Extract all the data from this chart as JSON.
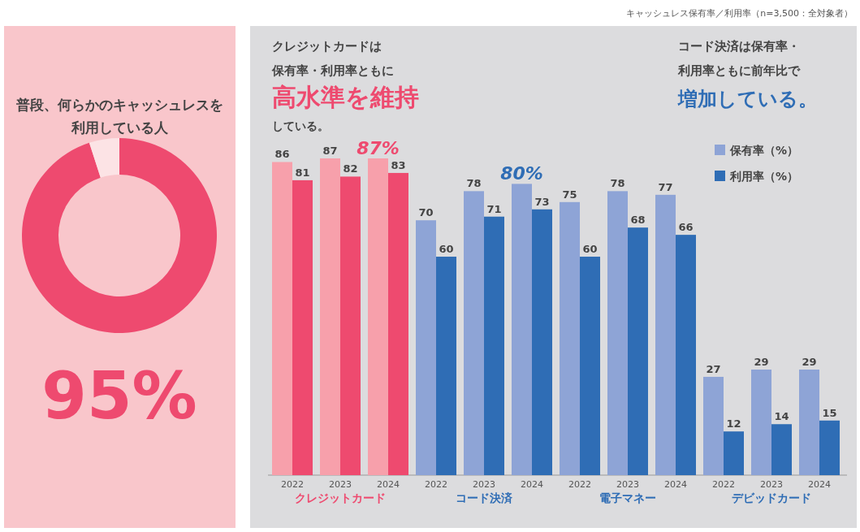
{
  "chart_data": [
    {
      "type": "donut",
      "title": "普段、何らかのキャッシュレスを利用している人",
      "categories": [
        null,
        null
      ],
      "values": [
        95,
        5
      ],
      "colors": [
        "#ee4a6f",
        "#fce3e5"
      ],
      "annotations": [
        "95%"
      ]
    },
    {
      "type": "bar",
      "subtitle": "キャッシュレス保有率／利用率（n=3,500：全対象者）",
      "categories": [
        "2022",
        "2023",
        "2024",
        "2022",
        "2023",
        "2024",
        "2022",
        "2023",
        "2024",
        "2022",
        "2023",
        "2024"
      ],
      "series": [
        {
          "name": "保有率（%）",
          "color": "#8ea4d6",
          "colors": [
            "#f7a0ab",
            "#f7a0ab",
            "#f7a0ab",
            "#8ea4d6",
            "#8ea4d6",
            "#8ea4d6",
            "#8ea4d6",
            "#8ea4d6",
            "#8ea4d6",
            "#8ea4d6",
            "#8ea4d6",
            "#8ea4d6"
          ],
          "values": [
            86,
            87,
            87,
            70,
            78,
            80,
            75,
            78,
            77,
            27,
            29,
            29
          ],
          "value_labels": [
            "86",
            "87",
            "87%",
            "70",
            "78",
            "80%",
            "75",
            "78",
            "77",
            "27",
            "29",
            "29"
          ]
        },
        {
          "name": "利用率（%）",
          "color": "#2f6db5",
          "colors": [
            "#ee4a6f",
            "#ee4a6f",
            "#ee4a6f",
            "#2f6db5",
            "#2f6db5",
            "#2f6db5",
            "#2f6db5",
            "#2f6db5",
            "#2f6db5",
            "#2f6db5",
            "#2f6db5",
            "#2f6db5"
          ],
          "values": [
            81,
            82,
            83,
            60,
            71,
            73,
            60,
            68,
            66,
            12,
            14,
            15
          ],
          "value_labels": [
            "81",
            "82",
            "83",
            "60",
            "71",
            "73",
            "60",
            "68",
            "66",
            "12",
            "14",
            "15"
          ]
        }
      ],
      "legend": "top right",
      "annotations": [
        "クレジットカードは",
        "保有率・利用率ともに",
        "高水準を維持",
        "している。",
        "コード決済は保有率・",
        "利用率ともに前年比で",
        "増加している。",
        "クレジットカード",
        "コード決済",
        "電子マネー",
        "デビッドカード"
      ]
    }
  ]
}
